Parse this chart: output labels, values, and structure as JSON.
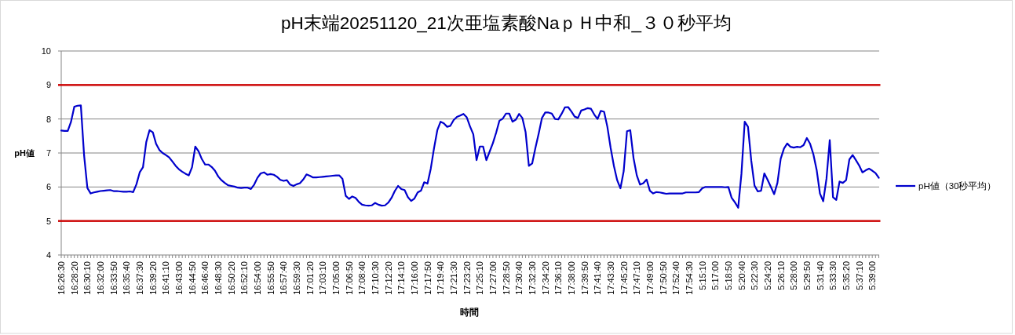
{
  "chart_data": {
    "type": "line",
    "title": "pH末端20251120_21次亜塩素酸NaｐＨ中和_３０秒平均",
    "xlabel": "時間",
    "ylabel": "pH値",
    "categories": [
      "16:26:30",
      null,
      null,
      null,
      "16:28:20",
      null,
      null,
      null,
      "16:30:10",
      null,
      null,
      null,
      "16:32:00",
      null,
      null,
      null,
      "16:33:50",
      null,
      null,
      null,
      "16:35:40",
      null,
      null,
      null,
      "16:37:30",
      null,
      null,
      null,
      "16:39:20",
      null,
      null,
      null,
      "16:41:10",
      null,
      null,
      null,
      "16:43:00",
      null,
      null,
      null,
      "16:44:50",
      null,
      null,
      null,
      "16:46:40",
      null,
      null,
      null,
      "16:48:30",
      null,
      null,
      null,
      "16:50:20",
      null,
      null,
      null,
      "16:52:10",
      null,
      null,
      null,
      "16:54:00",
      null,
      null,
      null,
      "16:55:50",
      null,
      null,
      null,
      "16:57:40",
      null,
      null,
      null,
      "16:59:30",
      null,
      null,
      null,
      "17:01:20",
      null,
      null,
      null,
      "17:03:10",
      null,
      null,
      null,
      "17:05:00",
      null,
      null,
      null,
      "17:06:50",
      null,
      null,
      null,
      "17:08:40",
      null,
      null,
      null,
      "17:10:30",
      null,
      null,
      null,
      "17:12:20",
      null,
      null,
      null,
      "17:14:10",
      null,
      null,
      null,
      "17:16:00",
      null,
      null,
      null,
      "17:17:50",
      null,
      null,
      null,
      "17:19:40",
      null,
      null,
      null,
      "17:21:30",
      null,
      null,
      null,
      "17:23:20",
      null,
      null,
      null,
      "17:25:10",
      null,
      null,
      null,
      "17:27:00",
      null,
      null,
      null,
      "17:28:50",
      null,
      null,
      null,
      "17:30:40",
      null,
      null,
      null,
      "17:32:30",
      null,
      null,
      null,
      "17:34:20",
      null,
      null,
      null,
      "17:36:10",
      null,
      null,
      null,
      "17:38:00",
      null,
      null,
      null,
      "17:39:50",
      null,
      null,
      null,
      "17:41:40",
      null,
      null,
      null,
      "17:43:30",
      null,
      null,
      null,
      "17:45:20",
      null,
      null,
      null,
      "17:47:10",
      null,
      null,
      null,
      "17:49:00",
      null,
      null,
      null,
      "17:50:50",
      null,
      null,
      null,
      "17:52:40",
      null,
      null,
      null,
      "17:54:30",
      null,
      null,
      null,
      "5:15:10",
      null,
      null,
      null,
      "5:17:00",
      null,
      null,
      null,
      "5:18:50",
      null,
      null,
      null,
      "5:20:40",
      null,
      null,
      null,
      "5:22:30",
      null,
      null,
      null,
      "5:24:20",
      null,
      null,
      null,
      "5:26:10",
      null,
      null,
      null,
      "5:28:00",
      null,
      null,
      null,
      "5:29:50",
      null,
      null,
      null,
      "5:31:40",
      null,
      null,
      null,
      "5:33:30",
      null,
      null,
      null,
      "5:35:20",
      null,
      null,
      null,
      "5:37:10",
      null,
      null,
      null,
      "5:39:00",
      null,
      null
    ],
    "series": [
      {
        "name": "pH値（30秒平均）",
        "color": "#0000cc",
        "values": [
          7.66,
          7.65,
          7.65,
          7.92,
          8.36,
          8.39,
          8.4,
          6.92,
          5.97,
          5.81,
          5.84,
          5.86,
          5.88,
          5.89,
          5.9,
          5.91,
          5.88,
          5.88,
          5.87,
          5.86,
          5.86,
          5.87,
          5.85,
          6.08,
          6.43,
          6.58,
          7.32,
          7.67,
          7.61,
          7.27,
          7.09,
          7.0,
          6.94,
          6.87,
          6.75,
          6.62,
          6.52,
          6.45,
          6.39,
          6.34,
          6.58,
          7.19,
          7.05,
          6.82,
          6.66,
          6.66,
          6.59,
          6.48,
          6.31,
          6.2,
          6.12,
          6.05,
          6.03,
          6.01,
          5.98,
          5.97,
          5.98,
          5.98,
          5.94,
          6.07,
          6.27,
          6.4,
          6.43,
          6.36,
          6.38,
          6.36,
          6.3,
          6.21,
          6.18,
          6.2,
          6.07,
          6.03,
          6.08,
          6.11,
          6.22,
          6.37,
          6.33,
          6.28,
          6.28,
          6.29,
          6.3,
          6.31,
          6.32,
          6.33,
          6.34,
          6.34,
          6.24,
          5.74,
          5.65,
          5.72,
          5.68,
          5.56,
          5.48,
          5.46,
          5.45,
          5.46,
          5.53,
          5.48,
          5.45,
          5.46,
          5.54,
          5.68,
          5.88,
          6.03,
          5.94,
          5.91,
          5.7,
          5.59,
          5.66,
          5.84,
          5.89,
          6.14,
          6.1,
          6.54,
          7.14,
          7.67,
          7.92,
          7.87,
          7.77,
          7.8,
          7.97,
          8.06,
          8.1,
          8.15,
          8.05,
          7.78,
          7.55,
          6.79,
          7.19,
          7.19,
          6.79,
          7.04,
          7.29,
          7.6,
          7.95,
          8.01,
          8.16,
          8.16,
          7.92,
          7.98,
          8.15,
          8.03,
          7.61,
          6.62,
          6.69,
          7.15,
          7.57,
          8.03,
          8.19,
          8.19,
          8.16,
          8.0,
          7.99,
          8.15,
          8.34,
          8.35,
          8.22,
          8.07,
          8.03,
          8.25,
          8.28,
          8.32,
          8.3,
          8.13,
          8.0,
          8.24,
          8.21,
          7.77,
          7.15,
          6.62,
          6.2,
          5.96,
          6.47,
          7.64,
          7.67,
          6.85,
          6.34,
          6.07,
          6.11,
          6.22,
          5.89,
          5.81,
          5.85,
          5.84,
          5.82,
          5.8,
          5.81,
          5.81,
          5.81,
          5.81,
          5.81,
          5.84,
          5.84,
          5.84,
          5.84,
          5.85,
          5.96,
          6.0,
          6.0,
          6.0,
          6.0,
          6.0,
          6.0,
          5.99,
          6.0,
          5.68,
          5.55,
          5.39,
          6.39,
          7.92,
          7.77,
          6.77,
          6.04,
          5.87,
          5.89,
          6.4,
          6.21,
          6.0,
          5.79,
          6.12,
          6.83,
          7.13,
          7.28,
          7.18,
          7.16,
          7.18,
          7.17,
          7.23,
          7.44,
          7.27,
          6.96,
          6.5,
          5.81,
          5.58,
          6.24,
          7.38,
          5.7,
          5.62,
          6.16,
          6.12,
          6.2,
          6.81,
          6.94,
          6.79,
          6.63,
          6.43,
          6.49,
          6.54,
          6.48,
          6.41,
          6.27
        ]
      }
    ],
    "ylim": [
      4,
      10
    ],
    "yticks": [
      4,
      5,
      6,
      7,
      8,
      9,
      10
    ],
    "grid": "y",
    "legend": "right",
    "marker": "none",
    "line_style": "solid",
    "ref_lines": [
      {
        "axis": "y",
        "value": 9,
        "color": "#cc0000"
      },
      {
        "axis": "y",
        "value": 5,
        "color": "#cc0000"
      }
    ]
  }
}
